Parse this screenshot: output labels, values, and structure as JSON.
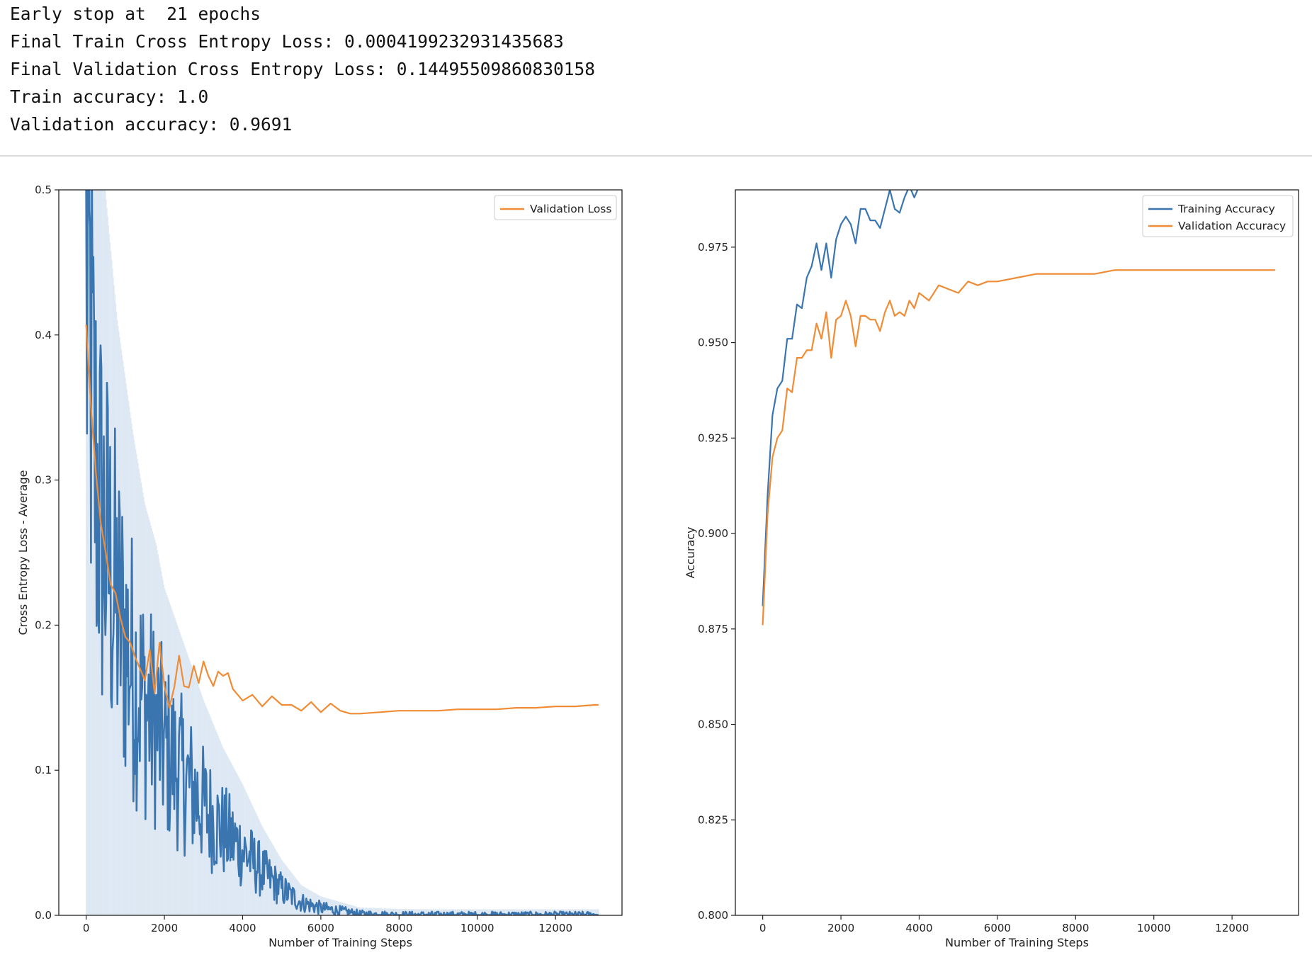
{
  "output": {
    "lines": [
      "Early stop at  21 epochs",
      "Final Train Cross Entropy Loss: 0.0004199232931435683",
      "Final Validation Cross Entropy Loss: 0.14495509860830158",
      "Train accuracy: 1.0",
      "Validation accuracy: 0.9691"
    ]
  },
  "colors": {
    "train": "#3a75b0",
    "validation": "#f08c36",
    "band": "#c7d9ec"
  },
  "chart_data": [
    {
      "type": "line",
      "xlabel": "Number of Training Steps",
      "ylabel": "Cross Entropy Loss - Average",
      "xlim": [
        -700,
        13700
      ],
      "ylim": [
        0.0,
        0.5
      ],
      "xticks": [
        0,
        2000,
        4000,
        6000,
        8000,
        10000,
        12000
      ],
      "yticks": [
        0.0,
        0.1,
        0.2,
        0.3,
        0.4,
        0.5
      ],
      "ytick_labels": [
        "0.0",
        "0.1",
        "0.2",
        "0.3",
        "0.4",
        "0.5"
      ],
      "legend": {
        "placement": "top-right",
        "entries": [
          "Validation Loss"
        ]
      },
      "series": [
        {
          "name": "Validation Loss",
          "color": "#f08c36",
          "x": [
            0,
            125,
            250,
            375,
            500,
            625,
            750,
            875,
            1000,
            1125,
            1250,
            1375,
            1500,
            1625,
            1750,
            1875,
            2000,
            2125,
            2250,
            2375,
            2500,
            2625,
            2750,
            2875,
            3000,
            3125,
            3250,
            3375,
            3500,
            3625,
            3750,
            3875,
            4000,
            4250,
            4500,
            4750,
            5000,
            5250,
            5500,
            5750,
            6000,
            6250,
            6500,
            6750,
            7000,
            7500,
            8000,
            8500,
            9000,
            9500,
            10000,
            10500,
            11000,
            11500,
            12000,
            12500,
            13000,
            13100
          ],
          "y": [
            0.407,
            0.35,
            0.305,
            0.27,
            0.25,
            0.228,
            0.222,
            0.205,
            0.192,
            0.188,
            0.178,
            0.17,
            0.162,
            0.183,
            0.153,
            0.188,
            0.158,
            0.143,
            0.157,
            0.179,
            0.158,
            0.157,
            0.172,
            0.16,
            0.175,
            0.165,
            0.158,
            0.168,
            0.165,
            0.167,
            0.156,
            0.152,
            0.148,
            0.152,
            0.144,
            0.151,
            0.145,
            0.145,
            0.141,
            0.147,
            0.14,
            0.146,
            0.141,
            0.139,
            0.139,
            0.14,
            0.141,
            0.141,
            0.141,
            0.142,
            0.142,
            0.142,
            0.143,
            0.143,
            0.144,
            0.144,
            0.145,
            0.145
          ]
        }
      ],
      "unlabeled_series": [
        {
          "description": "Training loss (shown without legend entry)",
          "color": "#3a75b0",
          "anchors_x": [
            0,
            100,
            200,
            400,
            600,
            800,
            1000,
            1200,
            1500,
            1800,
            2000,
            2500,
            3000,
            3500,
            4000,
            4500,
            5000,
            5500,
            6000,
            6500,
            7000,
            8000,
            9000,
            10000,
            11000,
            12000,
            13100
          ],
          "anchors_y": [
            0.43,
            0.4,
            0.32,
            0.27,
            0.24,
            0.21,
            0.19,
            0.17,
            0.145,
            0.13,
            0.115,
            0.095,
            0.075,
            0.058,
            0.045,
            0.03,
            0.018,
            0.009,
            0.005,
            0.003,
            0.001,
            0.0005,
            0.0004,
            0.0004,
            0.0004,
            0.0004,
            0.0004
          ]
        }
      ]
    },
    {
      "type": "line",
      "xlabel": "Number of Training Steps",
      "ylabel": "Accuracy",
      "xlim": [
        -700,
        13700
      ],
      "ylim": [
        0.8,
        0.99
      ],
      "xticks": [
        0,
        2000,
        4000,
        6000,
        8000,
        10000,
        12000
      ],
      "yticks": [
        0.8,
        0.825,
        0.85,
        0.875,
        0.9,
        0.925,
        0.95,
        0.975
      ],
      "ytick_labels": [
        "0.800",
        "0.825",
        "0.850",
        "0.875",
        "0.900",
        "0.925",
        "0.950",
        "0.975"
      ],
      "legend": {
        "placement": "top-right",
        "entries": [
          "Training Accuracy",
          "Validation Accuracy"
        ]
      },
      "series": [
        {
          "name": "Training Accuracy",
          "color": "#3a75b0",
          "x": [
            0,
            125,
            250,
            375,
            500,
            625,
            750,
            875,
            1000,
            1125,
            1250,
            1375,
            1500,
            1625,
            1750,
            1875,
            2000,
            2125,
            2250,
            2375,
            2500,
            2625,
            2750,
            2875,
            3000,
            3125,
            3250,
            3375,
            3500,
            3625,
            3750,
            3875,
            4000
          ],
          "y": [
            0.881,
            0.91,
            0.931,
            0.938,
            0.94,
            0.951,
            0.951,
            0.96,
            0.959,
            0.967,
            0.97,
            0.976,
            0.969,
            0.976,
            0.967,
            0.977,
            0.981,
            0.983,
            0.981,
            0.976,
            0.985,
            0.985,
            0.982,
            0.982,
            0.98,
            0.985,
            0.99,
            0.985,
            0.984,
            0.988,
            0.991,
            0.988,
            0.991
          ]
        },
        {
          "name": "Validation Accuracy",
          "color": "#f08c36",
          "x": [
            0,
            125,
            250,
            375,
            500,
            625,
            750,
            875,
            1000,
            1125,
            1250,
            1375,
            1500,
            1625,
            1750,
            1875,
            2000,
            2125,
            2250,
            2375,
            2500,
            2625,
            2750,
            2875,
            3000,
            3125,
            3250,
            3375,
            3500,
            3625,
            3750,
            3875,
            4000,
            4250,
            4500,
            4750,
            5000,
            5250,
            5500,
            5750,
            6000,
            6500,
            7000,
            7500,
            8000,
            8500,
            9000,
            9500,
            10000,
            10500,
            11000,
            11500,
            12000,
            12500,
            13000,
            13100
          ],
          "y": [
            0.876,
            0.905,
            0.92,
            0.925,
            0.927,
            0.938,
            0.937,
            0.946,
            0.946,
            0.948,
            0.948,
            0.955,
            0.951,
            0.958,
            0.946,
            0.956,
            0.957,
            0.961,
            0.957,
            0.949,
            0.957,
            0.957,
            0.956,
            0.956,
            0.953,
            0.958,
            0.961,
            0.957,
            0.958,
            0.957,
            0.961,
            0.959,
            0.963,
            0.961,
            0.965,
            0.964,
            0.963,
            0.966,
            0.965,
            0.966,
            0.966,
            0.967,
            0.968,
            0.968,
            0.968,
            0.968,
            0.969,
            0.969,
            0.969,
            0.969,
            0.969,
            0.969,
            0.969,
            0.969,
            0.969,
            0.969
          ]
        }
      ]
    }
  ]
}
